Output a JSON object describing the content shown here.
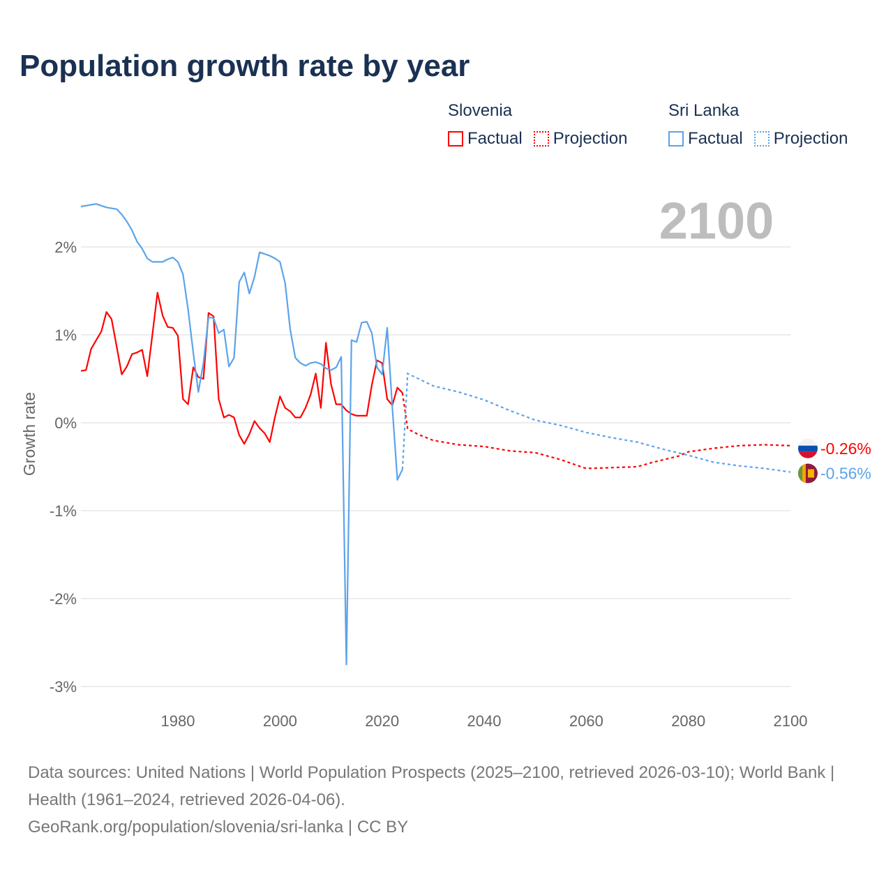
{
  "chart_data": {
    "type": "line",
    "title": "Population growth rate by year",
    "ylabel": "Growth rate",
    "xlim": [
      1961,
      2100
    ],
    "ylim": [
      -3,
      2.5
    ],
    "yticks": [
      2,
      1,
      0,
      -1,
      -2,
      -3
    ],
    "ytick_labels": [
      "2%",
      "1%",
      "0%",
      "-1%",
      "-2%",
      "-3%"
    ],
    "xticks": [
      1980,
      2000,
      2020,
      2040,
      2060,
      2080,
      2100
    ],
    "xtick_labels": [
      "1980",
      "2000",
      "2020",
      "2040",
      "2060",
      "2080",
      "2100"
    ],
    "year_label": "2100",
    "legend": {
      "groups": [
        {
          "name": "Slovenia",
          "factual": "Factual",
          "projection": "Projection",
          "color": "#ff0000"
        },
        {
          "name": "Sri Lanka",
          "factual": "Factual",
          "projection": "Projection",
          "color": "#5ba3ea"
        }
      ]
    },
    "series": [
      {
        "name": "Slovenia",
        "color": "#ff0000",
        "end_label": "-0.26%",
        "factual": {
          "x": [
            1961,
            1962,
            1963,
            1964,
            1965,
            1966,
            1967,
            1968,
            1969,
            1970,
            1971,
            1972,
            1973,
            1974,
            1975,
            1976,
            1977,
            1978,
            1979,
            1980,
            1981,
            1982,
            1983,
            1984,
            1985,
            1986,
            1987,
            1988,
            1989,
            1990,
            1991,
            1992,
            1993,
            1994,
            1995,
            1996,
            1997,
            1998,
            1999,
            2000,
            2001,
            2002,
            2003,
            2004,
            2005,
            2006,
            2007,
            2008,
            2009,
            2010,
            2011,
            2012,
            2013,
            2014,
            2015,
            2016,
            2017,
            2018,
            2019,
            2020,
            2021,
            2022,
            2023,
            2024
          ],
          "y": [
            0.59,
            0.6,
            0.84,
            0.94,
            1.04,
            1.26,
            1.18,
            0.87,
            0.55,
            0.64,
            0.78,
            0.8,
            0.83,
            0.53,
            1.0,
            1.48,
            1.22,
            1.09,
            1.08,
            0.99,
            0.27,
            0.21,
            0.63,
            0.52,
            0.5,
            1.25,
            1.21,
            0.27,
            0.06,
            0.09,
            0.06,
            -0.14,
            -0.24,
            -0.13,
            0.02,
            -0.06,
            -0.12,
            -0.22,
            0.06,
            0.3,
            0.17,
            0.13,
            0.06,
            0.06,
            0.17,
            0.32,
            0.56,
            0.17,
            0.91,
            0.44,
            0.21,
            0.21,
            0.14,
            0.1,
            0.08,
            0.08,
            0.08,
            0.43,
            0.71,
            0.68,
            0.27,
            0.2,
            0.4,
            0.34
          ]
        },
        "projection": {
          "x": [
            2024,
            2025,
            2027,
            2030,
            2035,
            2040,
            2045,
            2050,
            2055,
            2058,
            2060,
            2065,
            2070,
            2073,
            2078,
            2080,
            2085,
            2090,
            2095,
            2100
          ],
          "y": [
            0.34,
            -0.07,
            -0.13,
            -0.2,
            -0.25,
            -0.27,
            -0.32,
            -0.34,
            -0.42,
            -0.48,
            -0.52,
            -0.51,
            -0.5,
            -0.45,
            -0.38,
            -0.33,
            -0.29,
            -0.26,
            -0.25,
            -0.26
          ]
        }
      },
      {
        "name": "Sri Lanka",
        "color": "#5ba3ea",
        "end_label": "-0.56%",
        "factual": {
          "x": [
            1961,
            1962,
            1963,
            1964,
            1965,
            1966,
            1967,
            1968,
            1969,
            1970,
            1971,
            1972,
            1973,
            1974,
            1975,
            1976,
            1977,
            1978,
            1979,
            1980,
            1981,
            1982,
            1983,
            1984,
            1985,
            1986,
            1987,
            1988,
            1989,
            1990,
            1991,
            1992,
            1993,
            1994,
            1995,
            1996,
            1997,
            1998,
            1999,
            2000,
            2001,
            2002,
            2003,
            2004,
            2005,
            2006,
            2007,
            2008,
            2009,
            2010,
            2011,
            2012,
            2013,
            2014,
            2015,
            2016,
            2017,
            2018,
            2019,
            2020,
            2021,
            2022,
            2023,
            2024
          ],
          "y": [
            2.46,
            2.47,
            2.48,
            2.49,
            2.47,
            2.45,
            2.44,
            2.43,
            2.37,
            2.29,
            2.19,
            2.06,
            1.98,
            1.87,
            1.83,
            1.83,
            1.83,
            1.86,
            1.88,
            1.83,
            1.69,
            1.29,
            0.8,
            0.35,
            0.68,
            1.2,
            1.19,
            1.02,
            1.06,
            0.64,
            0.74,
            1.6,
            1.71,
            1.47,
            1.66,
            1.94,
            1.92,
            1.9,
            1.87,
            1.83,
            1.59,
            1.06,
            0.74,
            0.68,
            0.65,
            0.68,
            0.69,
            0.67,
            0.62,
            0.6,
            0.63,
            0.75,
            -2.75,
            0.94,
            0.92,
            1.14,
            1.15,
            1.02,
            0.63,
            0.55,
            1.08,
            0.18,
            -0.65,
            -0.53
          ]
        },
        "projection": {
          "x": [
            2024,
            2025,
            2030,
            2035,
            2040,
            2045,
            2050,
            2055,
            2060,
            2065,
            2070,
            2075,
            2080,
            2085,
            2090,
            2095,
            2100
          ],
          "y": [
            -0.53,
            0.56,
            0.42,
            0.35,
            0.26,
            0.14,
            0.03,
            -0.03,
            -0.11,
            -0.17,
            -0.22,
            -0.3,
            -0.37,
            -0.45,
            -0.49,
            -0.52,
            -0.56
          ]
        }
      }
    ]
  },
  "footer": {
    "sources": "Data sources: United Nations | World Population Prospects (2025–2100, retrieved 2026-03-10); World Bank | Health (1961–2024, retrieved 2026-04-06).",
    "link": "GeoRank.org/population/slovenia/sri-lanka | CC BY"
  }
}
